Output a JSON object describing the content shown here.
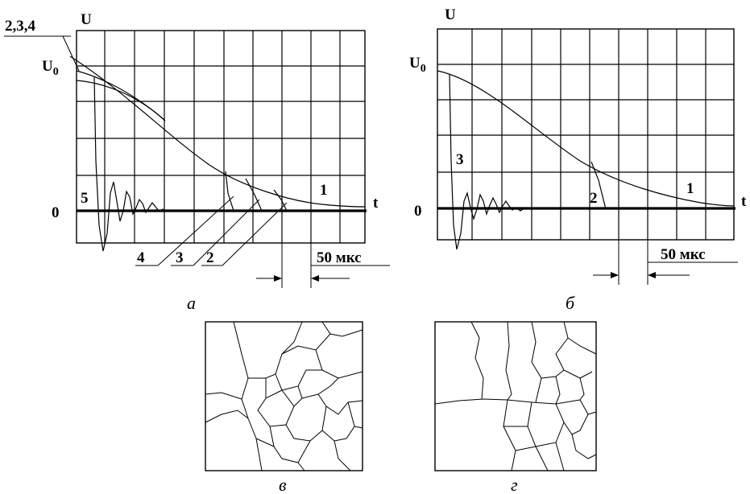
{
  "chart_data": [
    {
      "panel": "а",
      "type": "line",
      "ylabel": "U",
      "y_ref_label": "U0",
      "zero_label": "0",
      "xlabel": "t",
      "corner_label": "2,3,4",
      "scale_label": "50 мкс",
      "curve_labels": [
        "1",
        "2",
        "3",
        "4",
        "5"
      ]
    },
    {
      "panel": "б",
      "type": "line",
      "ylabel": "U",
      "y_ref_label": "U0",
      "zero_label": "0",
      "xlabel": "t",
      "scale_label": "50 мкс",
      "curve_labels": [
        "1",
        "2",
        "3"
      ]
    }
  ],
  "micrographs": [
    {
      "caption": "в"
    },
    {
      "caption": "г"
    }
  ],
  "captions": {
    "a": "а",
    "b": "б",
    "v": "в",
    "g": "г"
  }
}
